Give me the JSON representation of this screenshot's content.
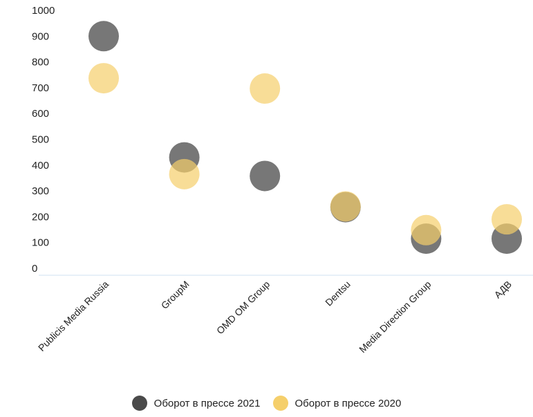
{
  "chart_data": {
    "type": "scatter",
    "categories": [
      "Publicis Media Russia",
      "GroupM",
      "OMD OM Group",
      "Dentsu",
      "Media Direction Group",
      "АДВ"
    ],
    "series": [
      {
        "name": "Оборот в прессе 2021",
        "color": "#4a4a4a",
        "values": [
          900,
          430,
          358,
          237,
          115,
          115
        ]
      },
      {
        "name": "Оборот в прессе 2020",
        "color": "#f5cf6b",
        "values": [
          737,
          365,
          697,
          240,
          148,
          190
        ]
      }
    ],
    "yticks": [
      0,
      100,
      200,
      300,
      400,
      500,
      600,
      700,
      800,
      900,
      1000
    ],
    "ylim": [
      0,
      1000
    ],
    "grid": false,
    "legend_position": "bottom"
  }
}
